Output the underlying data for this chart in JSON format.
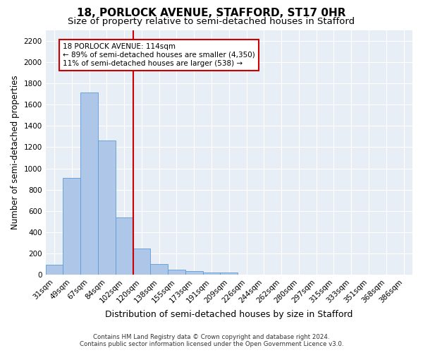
{
  "title": "18, PORLOCK AVENUE, STAFFORD, ST17 0HR",
  "subtitle": "Size of property relative to semi-detached houses in Stafford",
  "xlabel": "Distribution of semi-detached houses by size in Stafford",
  "ylabel": "Number of semi-detached properties",
  "footer1": "Contains HM Land Registry data © Crown copyright and database right 2024.",
  "footer2": "Contains public sector information licensed under the Open Government Licence v3.0.",
  "bin_labels": [
    "31sqm",
    "49sqm",
    "67sqm",
    "84sqm",
    "102sqm",
    "120sqm",
    "138sqm",
    "155sqm",
    "173sqm",
    "191sqm",
    "209sqm",
    "226sqm",
    "244sqm",
    "262sqm",
    "280sqm",
    "297sqm",
    "315sqm",
    "333sqm",
    "351sqm",
    "368sqm",
    "386sqm"
  ],
  "bar_heights": [
    95,
    910,
    1710,
    1260,
    540,
    245,
    105,
    50,
    35,
    25,
    20,
    0,
    0,
    0,
    0,
    0,
    0,
    0,
    0,
    0,
    0
  ],
  "bar_color": "#aec6e8",
  "bar_edge_color": "#5b9bd5",
  "ylim": [
    0,
    2300
  ],
  "yticks": [
    0,
    200,
    400,
    600,
    800,
    1000,
    1200,
    1400,
    1600,
    1800,
    2000,
    2200
  ],
  "vline_x_index": 4.5,
  "vline_color": "#cc0000",
  "annotation_line1": "18 PORLOCK AVENUE: 114sqm",
  "annotation_line2": "← 89% of semi-detached houses are smaller (4,350)",
  "annotation_line3": "11% of semi-detached houses are larger (538) →",
  "annotation_box_color": "#ffffff",
  "annotation_box_edgecolor": "#cc0000",
  "bg_color": "#e8eef5",
  "grid_color": "#ffffff",
  "title_fontsize": 11,
  "subtitle_fontsize": 9.5,
  "ylabel_fontsize": 8.5,
  "xlabel_fontsize": 9,
  "tick_fontsize": 7.5,
  "annot_fontsize": 7.5
}
